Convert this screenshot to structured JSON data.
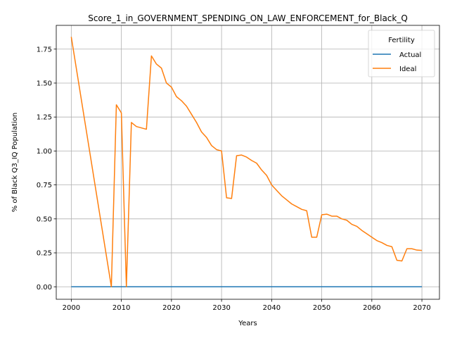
{
  "chart_data": {
    "type": "line",
    "title": "Score_1_in_GOVERNMENT_SPENDING_ON_LAW_ENFORCEMENT_for_Black_Q",
    "xlabel": "Years",
    "ylabel": "% of Black Q3_IQ Population",
    "xlim": [
      1997,
      2073.5
    ],
    "ylim": [
      -0.092,
      1.925
    ],
    "xticks": [
      2000,
      2010,
      2020,
      2030,
      2040,
      2050,
      2060,
      2070
    ],
    "yticks": [
      0.0,
      0.25,
      0.5,
      0.75,
      1.0,
      1.25,
      1.5,
      1.75
    ],
    "ytick_labels": [
      "0.00",
      "0.25",
      "0.50",
      "0.75",
      "1.00",
      "1.25",
      "1.50",
      "1.75"
    ],
    "grid": true,
    "legend": {
      "title": "Fertility",
      "placement": "top-right"
    },
    "series": [
      {
        "name": "Actual",
        "color": "#1f77b4",
        "points": [
          [
            2000,
            0.0
          ],
          [
            2070,
            0.0
          ]
        ]
      },
      {
        "name": "Ideal",
        "color": "#ff7f0e",
        "points": [
          [
            2000,
            1.84
          ],
          [
            2008,
            0.0
          ],
          [
            2009,
            1.34
          ],
          [
            2010,
            1.28
          ],
          [
            2011,
            0.0
          ],
          [
            2012,
            1.21
          ],
          [
            2013,
            1.18
          ],
          [
            2015,
            1.16
          ],
          [
            2016,
            1.7
          ],
          [
            2017,
            1.64
          ],
          [
            2018,
            1.61
          ],
          [
            2019,
            1.5
          ],
          [
            2020,
            1.47
          ],
          [
            2021,
            1.4
          ],
          [
            2022,
            1.37
          ],
          [
            2023,
            1.33
          ],
          [
            2024,
            1.27
          ],
          [
            2025,
            1.21
          ],
          [
            2026,
            1.14
          ],
          [
            2027,
            1.1
          ],
          [
            2028,
            1.04
          ],
          [
            2029,
            1.01
          ],
          [
            2030,
            1.0
          ],
          [
            2031,
            0.655
          ],
          [
            2032,
            0.65
          ],
          [
            2033,
            0.965
          ],
          [
            2034,
            0.97
          ],
          [
            2035,
            0.955
          ],
          [
            2036,
            0.93
          ],
          [
            2037,
            0.91
          ],
          [
            2038,
            0.86
          ],
          [
            2039,
            0.82
          ],
          [
            2040,
            0.75
          ],
          [
            2041,
            0.71
          ],
          [
            2042,
            0.67
          ],
          [
            2043,
            0.64
          ],
          [
            2044,
            0.61
          ],
          [
            2045,
            0.59
          ],
          [
            2046,
            0.57
          ],
          [
            2047,
            0.56
          ],
          [
            2048,
            0.365
          ],
          [
            2049,
            0.365
          ],
          [
            2050,
            0.53
          ],
          [
            2051,
            0.535
          ],
          [
            2052,
            0.52
          ],
          [
            2053,
            0.52
          ],
          [
            2054,
            0.5
          ],
          [
            2055,
            0.49
          ],
          [
            2056,
            0.46
          ],
          [
            2057,
            0.445
          ],
          [
            2058,
            0.415
          ],
          [
            2059,
            0.39
          ],
          [
            2060,
            0.365
          ],
          [
            2061,
            0.34
          ],
          [
            2062,
            0.325
          ],
          [
            2063,
            0.305
          ],
          [
            2064,
            0.295
          ],
          [
            2065,
            0.195
          ],
          [
            2066,
            0.19
          ],
          [
            2067,
            0.28
          ],
          [
            2068,
            0.28
          ],
          [
            2069,
            0.27
          ],
          [
            2070,
            0.268
          ]
        ]
      }
    ]
  }
}
